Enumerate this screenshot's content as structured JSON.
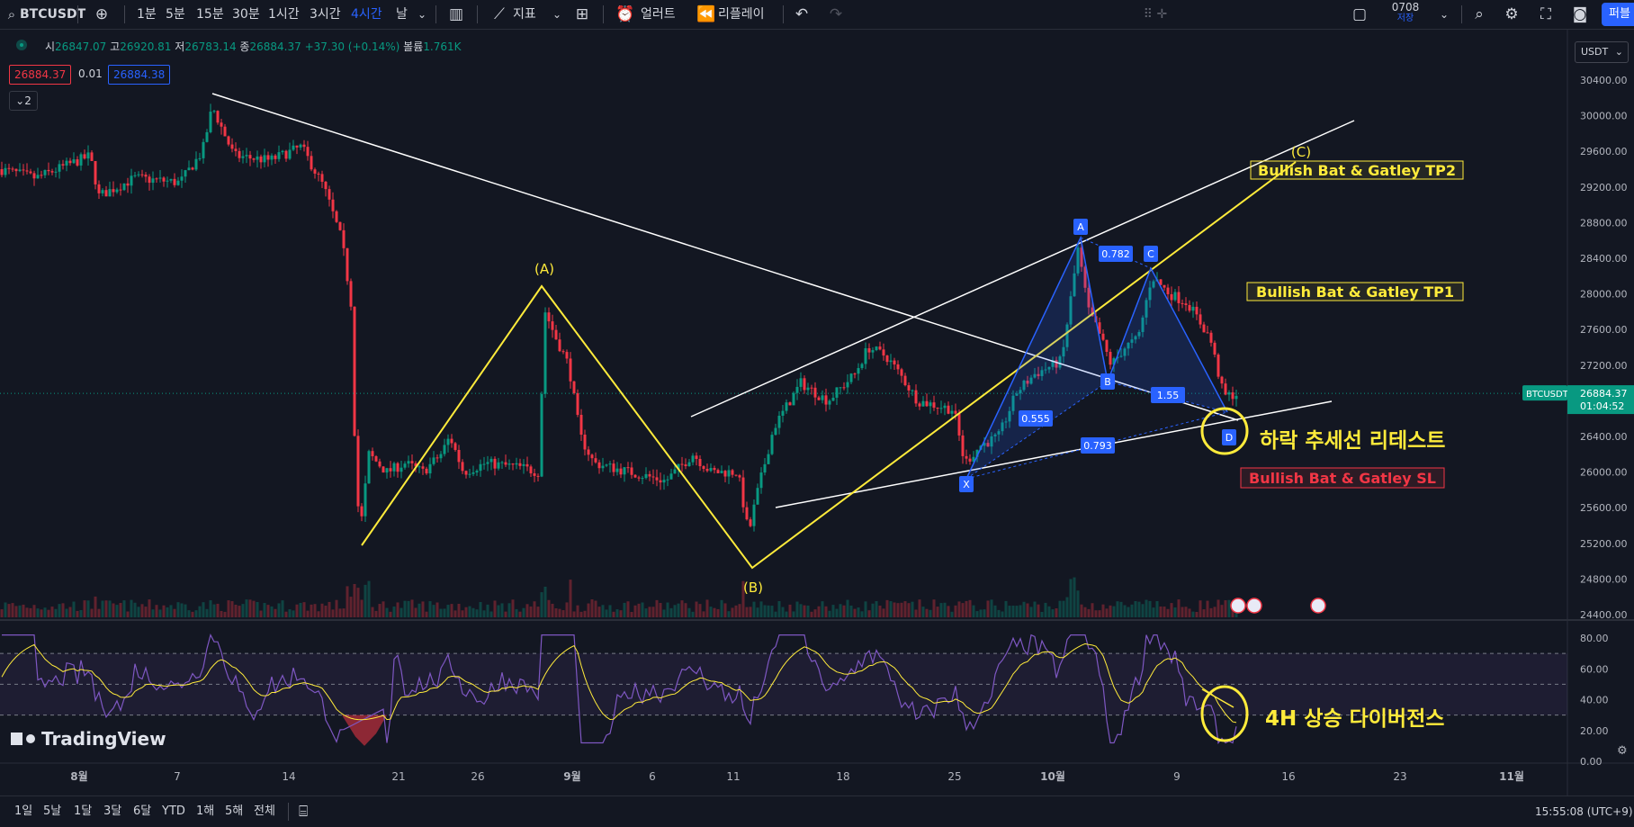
{
  "toolbar": {
    "symbol": "BTCUSDT",
    "timeframes": [
      "1분",
      "5분",
      "15분",
      "30분",
      "1시간",
      "3시간",
      "4시간",
      "날"
    ],
    "active_timeframe": "4시간",
    "indicators_label": "지표",
    "alert_label": "얼러트",
    "replay_label": "리플레이",
    "layout_name": "0708",
    "layout_status": "저장",
    "publish_label": "퍼블"
  },
  "legend": {
    "open_label": "시",
    "open": "26847.07",
    "high_label": "고",
    "high": "26920.81",
    "low_label": "저",
    "low": "26783.14",
    "close_label": "종",
    "close": "26884.37",
    "change": "+37.30 (+0.14%)",
    "volume_label": "볼륨",
    "volume": "1.761K",
    "sell_price": "26884.37",
    "spread": "0.01",
    "buy_price": "26884.38",
    "collapse_count": "2"
  },
  "price_axis": {
    "currency": "USDT",
    "labels": [
      "30400.00",
      "30000.00",
      "29600.00",
      "29200.00",
      "28800.00",
      "28400.00",
      "28000.00",
      "27600.00",
      "27200.00",
      "26800.00",
      "26400.00",
      "26000.00",
      "25600.00",
      "25200.00",
      "24800.00",
      "24400.00"
    ],
    "current_symbol": "BTCUSDT",
    "current_price": "26884.37",
    "countdown": "01:04:52"
  },
  "rsi_axis": {
    "labels": [
      "80.00",
      "60.00",
      "40.00",
      "20.00",
      "0.00"
    ]
  },
  "date_axis": {
    "labels": [
      {
        "text": "8월",
        "bold": true
      },
      {
        "text": "7",
        "bold": false
      },
      {
        "text": "14",
        "bold": false
      },
      {
        "text": "21",
        "bold": false
      },
      {
        "text": "26",
        "bold": false
      },
      {
        "text": "9월",
        "bold": true
      },
      {
        "text": "6",
        "bold": false
      },
      {
        "text": "11",
        "bold": false
      },
      {
        "text": "18",
        "bold": false
      },
      {
        "text": "25",
        "bold": false
      },
      {
        "text": "10월",
        "bold": true
      },
      {
        "text": "9",
        "bold": false
      },
      {
        "text": "16",
        "bold": false
      },
      {
        "text": "23",
        "bold": false
      },
      {
        "text": "11월",
        "bold": true
      }
    ]
  },
  "annotations": {
    "wave_a": "(A)",
    "wave_b": "(B)",
    "wave_c": "(C)",
    "harmonic_points": [
      "X",
      "A",
      "B",
      "C",
      "D"
    ],
    "ratios": [
      "0.782",
      "0.555",
      "1.55",
      "0.793"
    ],
    "tp2": "Bullish Bat & Gatley TP2",
    "tp1": "Bullish Bat & Gatley TP1",
    "sl": "Bullish Bat & Gatley SL",
    "retest": "하락 추세선 리테스트",
    "divergence": "4H 상승 다이버전스"
  },
  "watermark": "TradingView",
  "bottom": {
    "ranges": [
      "1일",
      "5날",
      "1달",
      "3달",
      "6달",
      "YTD",
      "1해",
      "5해",
      "전체"
    ],
    "clock": "15:55:08 (UTC+9)"
  },
  "colors": {
    "bg": "#131722",
    "up": "#089981",
    "down": "#f23645",
    "yellow": "#ffeb3b",
    "blue": "#2962ff",
    "rsi": "#7e57c2"
  }
}
